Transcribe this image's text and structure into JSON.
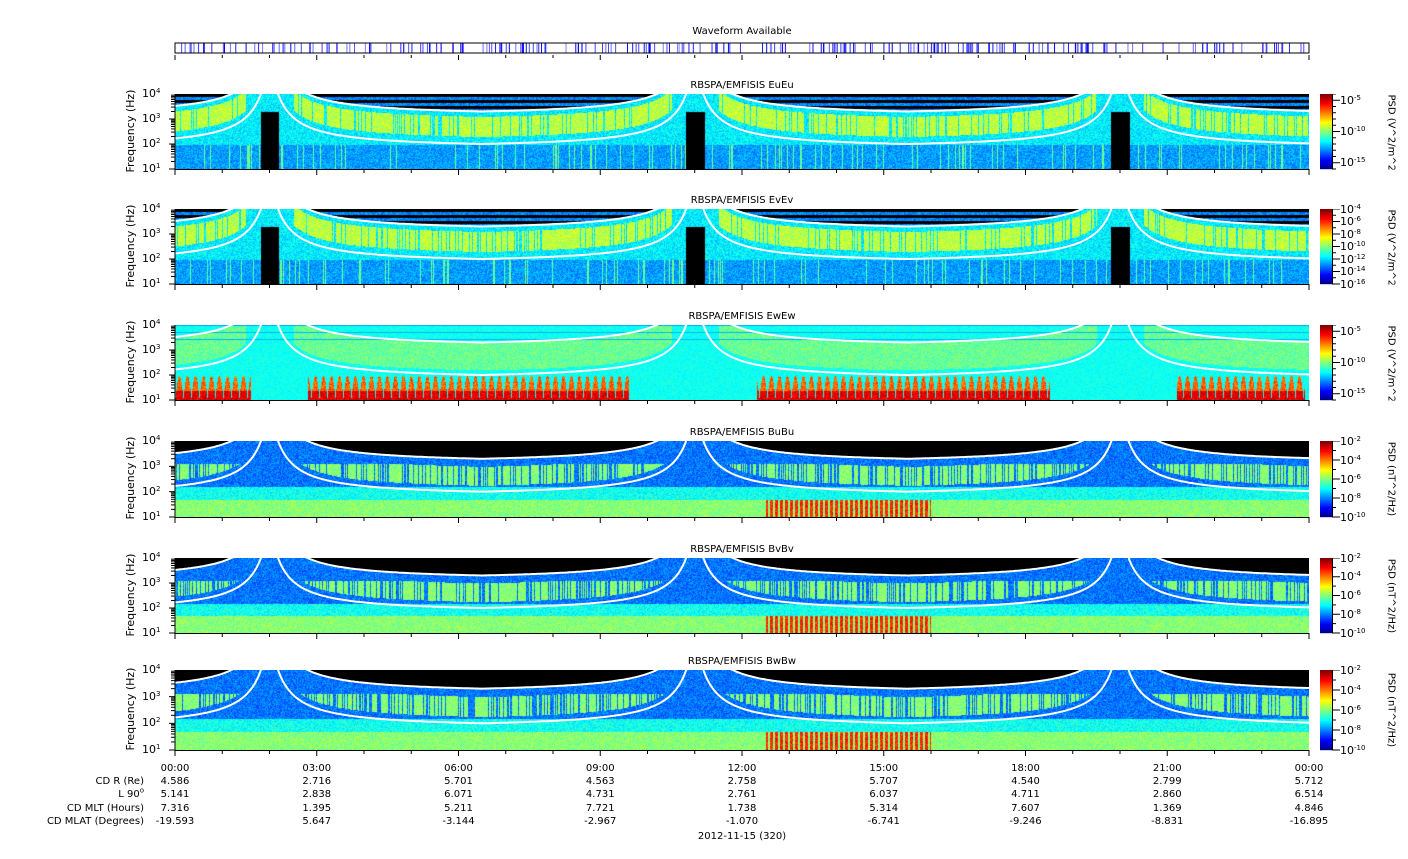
{
  "waveform": {
    "title": "Waveform Available",
    "color": "#0000ff"
  },
  "x_axis": {
    "ticks": [
      "00:00",
      "03:00",
      "06:00",
      "09:00",
      "12:00",
      "15:00",
      "18:00",
      "21:00",
      "00:00"
    ],
    "date": "2012-11-15 (320)",
    "rows": [
      {
        "label": "CD R (Re)",
        "values": [
          "4.586",
          "2.716",
          "5.701",
          "4.563",
          "2.758",
          "5.707",
          "4.540",
          "2.799",
          "5.712"
        ]
      },
      {
        "label": "L 90",
        "sup": "o",
        "values": [
          "5.141",
          "2.838",
          "6.071",
          "4.731",
          "2.761",
          "6.037",
          "4.711",
          "2.860",
          "6.514"
        ]
      },
      {
        "label": "CD MLT (Hours)",
        "values": [
          "7.316",
          "1.395",
          "5.211",
          "7.721",
          "1.738",
          "5.314",
          "7.607",
          "1.369",
          "4.846"
        ]
      },
      {
        "label": "CD MLAT (Degrees)",
        "values": [
          "-19.593",
          "5.647",
          "-3.144",
          "-2.967",
          "-1.070",
          "-6.741",
          "-9.246",
          "-8.831",
          "-16.895"
        ]
      }
    ]
  },
  "chart_data": [
    {
      "type": "heatmap",
      "title": "RBSPA/EMFISIS  EuEu",
      "ylabel": "Frequency (Hz)",
      "yscale": "log",
      "ylim": [
        10,
        10000
      ],
      "yticks": [
        "4",
        "3",
        "2",
        "1"
      ],
      "colorbar": {
        "label": "PSD (V^2/m^2/Hz)",
        "scale": "log",
        "ticks": [
          "-5",
          "-10",
          "-15"
        ],
        "range_exp": [
          -16,
          -4
        ]
      },
      "kind": "E"
    },
    {
      "type": "heatmap",
      "title": "RBSPA/EMFISIS  EvEv",
      "ylabel": "Frequency (Hz)",
      "yscale": "log",
      "ylim": [
        10,
        10000
      ],
      "yticks": [
        "4",
        "3",
        "2",
        "1"
      ],
      "colorbar": {
        "label": "PSD (V^2/m^2/Hz)",
        "scale": "log",
        "ticks": [
          "-4",
          "-6",
          "-8",
          "-10",
          "-12",
          "-14",
          "-16"
        ],
        "range_exp": [
          -16,
          -4
        ]
      },
      "kind": "E"
    },
    {
      "type": "heatmap",
      "title": "RBSPA/EMFISIS  EwEw",
      "ylabel": "Frequency (Hz)",
      "yscale": "log",
      "ylim": [
        10,
        10000
      ],
      "yticks": [
        "4",
        "3",
        "2",
        "1"
      ],
      "colorbar": {
        "label": "PSD (V^2/m^2/Hz)",
        "scale": "log",
        "ticks": [
          "-5",
          "-10",
          "-15"
        ],
        "range_exp": [
          -16,
          -4
        ]
      },
      "kind": "W"
    },
    {
      "type": "heatmap",
      "title": "RBSPA/EMFISIS  BuBu",
      "ylabel": "Frequency (Hz)",
      "yscale": "log",
      "ylim": [
        10,
        10000
      ],
      "yticks": [
        "4",
        "3",
        "2",
        "1"
      ],
      "colorbar": {
        "label": "PSD (nT^2/Hz)",
        "scale": "log",
        "ticks": [
          "-2",
          "-4",
          "-6",
          "-8",
          "-10"
        ],
        "range_exp": [
          -10,
          -2
        ]
      },
      "kind": "B"
    },
    {
      "type": "heatmap",
      "title": "RBSPA/EMFISIS  BvBv",
      "ylabel": "Frequency (Hz)",
      "yscale": "log",
      "ylim": [
        10,
        10000
      ],
      "yticks": [
        "4",
        "3",
        "2",
        "1"
      ],
      "colorbar": {
        "label": "PSD (nT^2/Hz)",
        "scale": "log",
        "ticks": [
          "-2",
          "-4",
          "-6",
          "-8",
          "-10"
        ],
        "range_exp": [
          -10,
          -2
        ]
      },
      "kind": "B"
    },
    {
      "type": "heatmap",
      "title": "RBSPA/EMFISIS  BwBw",
      "ylabel": "Frequency (Hz)",
      "yscale": "log",
      "ylim": [
        10,
        10000
      ],
      "yticks": [
        "4",
        "3",
        "2",
        "1"
      ],
      "colorbar": {
        "label": "PSD (nT^2/Hz)",
        "scale": "log",
        "ticks": [
          "-2",
          "-4",
          "-6",
          "-8",
          "-10"
        ],
        "range_exp": [
          -10,
          -2
        ]
      },
      "kind": "B"
    }
  ]
}
